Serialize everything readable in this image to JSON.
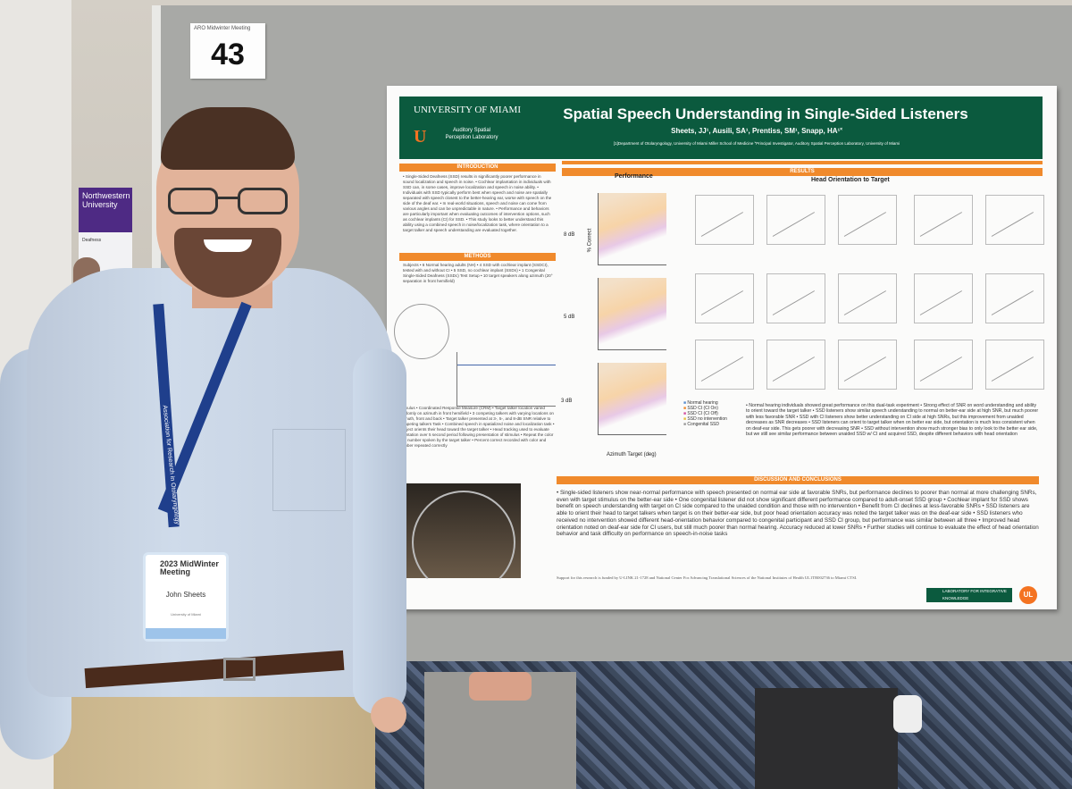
{
  "board": {
    "meeting_label": "ARO Midwinter Meeting",
    "number": "43"
  },
  "background_poster": {
    "header": "Northwestern University",
    "text": "Deafness"
  },
  "poster": {
    "university": "UNIVERSITY OF MIAMI",
    "logo_letter": "U",
    "lab": "Auditory Spatial Perception Laboratory",
    "title": "Spatial Speech Understanding in Single-Sided Listeners",
    "authors": "Sheets, JJ¹, Ausili, SA¹, Prentiss, SM¹, Snapp, HA¹˟",
    "affiliation": "[1]Department of Otolaryngology, University of Miami Miller School of Medicine ˟Principal Investigator, Auditory Spatial Perception Laboratory, University of Miami",
    "sections": {
      "introduction": "INTRODUCTION",
      "methods": "METHODS",
      "results": "RESULTS",
      "discussion": "DISCUSSION AND CONCLUSIONS"
    },
    "intro_text": "• Single-Sided Deafness (SSD) results in significantly poorer performance in sound localization and speech in noise. • Cochlear implantation in individuals with SSD can, in some cases, improve localization and speech in noise ability. • Individuals with SSD typically perform best when speech and noise are spatially separated with speech closest to the better-hearing ear, worse with speech on the side of the deaf ear. • In real-world situations, speech and noise can come from various angles and can be unpredictable in nature. • Performance and behaviors are particularly important when evaluating outcomes of intervention options, such as cochlear implants (CI) for SSD. • This study looks to better understand this ability using a combined speech in noise/localization task, where orientation to a target talker and speech understanding are evaluated together.",
    "methods_text": "Subjects • 6 Normal hearing adults (NH) • 4 SSD with cochlear implant (SSDCI), tested with and without CI • 5 SSD, no cochlear implant (SSDn) • 1 Congenital Single-Sided Deafness (SSDc) Test Setup • 10 target speakers along azimuth (20° separation in front hemifield)",
    "stimulus_text": "Stimulus • Coordinated Response Measure (CRM) • Target talker location varied randomly on azimuth in front hemifield • 3 competing talkers with varying locations on azimuth, front and back • Target talker presented at 3-, 5-, and 8-dB SNR relative to competing talkers Task • Combined speech in spatialized noise and localization task • Subject orients their head toward the target talker • Head tracking used to evaluate orientation over 5 second period following presentation of stimulus • Repeat the color and number spoken by the target talker • Percent correct recorded with color and number repeated correctly",
    "performance_label": "Performance",
    "head_orientation_label": "Head Orientation to Target",
    "snr_labels": [
      "8 dB",
      "5 dB",
      "3 dB"
    ],
    "y_axis_label": "% Correct",
    "x_axis_label": "Azimuth Target (deg)",
    "legend": [
      "Normal hearing",
      "SSD CI (CI On)",
      "SSD CI (CI Off)",
      "SSD no intervention",
      "Congenital SSD"
    ],
    "legend_colors": [
      "#5a8fd0",
      "#f08a2c",
      "#d34fa0",
      "#e8c040",
      "#999999"
    ],
    "findings_text": "• Normal hearing individuals showed great performance on this dual-task experiment • Strong effect of SNR on word understanding and ability to orient toward the target talker • SSD listeners show similar speech understanding to normal on better-ear side at high SNR, but much poorer with less favorable SNR • SSD with CI listeners show better understanding on CI side at high SNRs, but this improvement from unaided decreases as SNR decreases • SSD listeners can orient to target talker when on better ear side, but orientation is much less consistent when on deaf-ear side. This gets poorer with decreasing SNR • SSD without intervention show much stronger bias to only look to the better ear side, but we still see similar performance between unaided SSD w/ CI and acquired SSD, despite different behaviors with head orientation",
    "discussion_text": "• Single-sided listeners show near-normal performance with speech presented on normal ear side at favorable SNRs, but performance declines to poorer than normal at more challenging SNRs, even with target stimulus on the better-ear side • One congenital listener did not show significant different performance compared to adult-onset SSD group • Cochlear implant for SSD shows benefit on speech understanding with target on CI side compared to the unaided condition and those with no intervention • Benefit from CI declines at less-favorable SNRs • SSD listeners are able to orient their head to target talkers when target is on their better-ear side, but poor head orientation accuracy was noted the target talker was on the deaf-ear side • SSD listeners who received no intervention showed different head-orientation behavior compared to congenital participant and SSD CI group, but performance was similar between all three • Improved head orientation noted on deaf-ear side for CI users, but still much poorer than normal hearing. Accuracy reduced at lower SNRs • Further studies will continue to evaluate the effect of head orientation behavior and task difficulty on performance on speech-in-noise tasks",
    "funding": "Support for this research is funded by U-LINK 21-1728 and National Center For Advancing Translational Sciences of the National Institutes of Health UL1TR002736 to Miami CTSI.",
    "lik_label": "LABORATORY FOR INTEGRATIVE KNOWLEDGE",
    "lik_badge": "UL"
  },
  "name_badge": {
    "event": "2023 MidWinter Meeting",
    "name": "John Sheets",
    "affiliation": "University of Miami"
  },
  "lanyard_text": "Association for Research in Otolaryngology",
  "colors": {
    "poster_header": "#0b5a3e",
    "section_bar": "#f08a2c",
    "lanyard": "#1f3f8c"
  }
}
